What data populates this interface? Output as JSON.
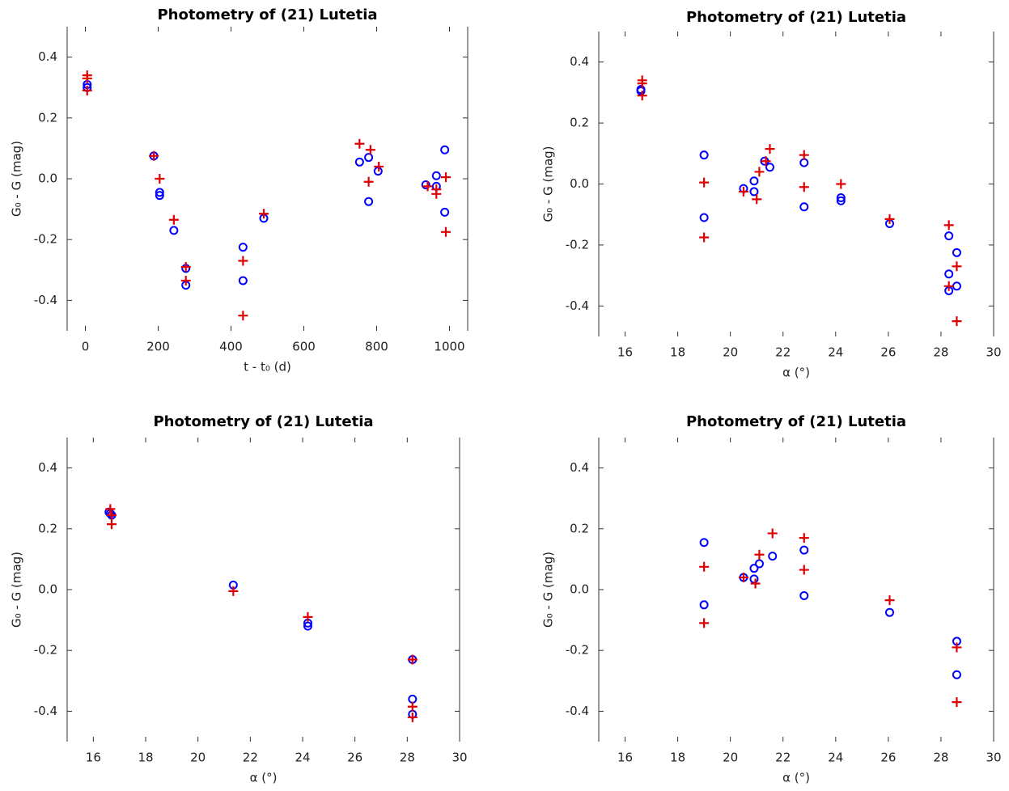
{
  "chart_data": [
    {
      "type": "scatter",
      "title": "Photometry of (21) Lutetia",
      "xlabel": "t - t₀ (d)",
      "ylabel": "G₀ - G (mag)",
      "xlim": [
        -50,
        1050
      ],
      "ylim": [
        -0.5,
        0.5
      ],
      "xticks": [
        0,
        200,
        400,
        600,
        800,
        1000
      ],
      "yticks": [
        0.4,
        0.2,
        {
          "value": 0,
          "label": "0.0"
        },
        -0.2,
        -0.4
      ],
      "series": [
        {
          "color": "#0000ff",
          "marker": "o",
          "x": [
            5,
            5,
            188,
            204,
            204,
            243,
            276,
            276,
            433,
            433,
            490,
            753,
            778,
            778,
            804,
            935,
            964,
            964,
            987,
            987
          ],
          "values": [
            0.31,
            0.3,
            0.075,
            -0.045,
            -0.055,
            -0.17,
            -0.295,
            -0.35,
            -0.225,
            -0.335,
            -0.13,
            0.055,
            0.07,
            -0.075,
            0.025,
            -0.02,
            0.01,
            -0.025,
            0.095,
            -0.11
          ]
        },
        {
          "color": "#e00000",
          "marker": "+",
          "x": [
            5,
            5,
            5,
            188,
            204,
            243,
            276,
            276,
            433,
            433,
            490,
            753,
            783,
            778,
            806,
            940,
            964,
            964,
            990,
            990
          ],
          "values": [
            0.34,
            0.33,
            0.29,
            0.075,
            0.0,
            -0.135,
            -0.29,
            -0.335,
            -0.27,
            -0.45,
            -0.115,
            0.115,
            0.095,
            -0.01,
            0.04,
            -0.025,
            -0.035,
            -0.05,
            0.005,
            -0.175
          ]
        }
      ]
    },
    {
      "type": "scatter",
      "title": "Photometry of (21) Lutetia",
      "xlabel": "α (°)",
      "ylabel": "G₀ - G (mag)",
      "xlim": [
        15,
        30
      ],
      "ylim": [
        -0.5,
        0.5
      ],
      "xticks": [
        16,
        18,
        20,
        22,
        24,
        26,
        28,
        30
      ],
      "yticks": [
        0.4,
        0.2,
        {
          "value": 0,
          "label": "0.0"
        },
        -0.2,
        -0.4
      ],
      "series": [
        {
          "color": "#0000ff",
          "marker": "o",
          "x": [
            16.6,
            16.6,
            19.0,
            19.0,
            20.5,
            20.9,
            20.9,
            21.3,
            21.5,
            22.8,
            22.8,
            24.2,
            24.2,
            26.05,
            28.3,
            28.3,
            28.3,
            28.6,
            28.6
          ],
          "values": [
            0.31,
            0.305,
            0.095,
            -0.11,
            -0.015,
            0.01,
            -0.025,
            0.075,
            0.055,
            0.07,
            -0.075,
            -0.045,
            -0.055,
            -0.13,
            -0.17,
            -0.295,
            -0.35,
            -0.225,
            -0.335
          ]
        },
        {
          "color": "#e00000",
          "marker": "+",
          "x": [
            16.65,
            16.65,
            16.65,
            19.0,
            19.0,
            20.5,
            21.0,
            21.1,
            21.35,
            21.5,
            22.8,
            22.8,
            24.2,
            26.05,
            28.3,
            28.3,
            28.6,
            28.6
          ],
          "values": [
            0.34,
            0.33,
            0.29,
            0.005,
            -0.175,
            -0.025,
            -0.05,
            0.04,
            0.075,
            0.115,
            0.095,
            -0.01,
            0.0,
            -0.115,
            -0.135,
            -0.335,
            -0.27,
            -0.45
          ]
        }
      ]
    },
    {
      "type": "scatter",
      "title": "Photometry of (21) Lutetia",
      "xlabel": "α (°)",
      "ylabel": "G₀ - G (mag)",
      "xlim": [
        15,
        30
      ],
      "ylim": [
        -0.5,
        0.5
      ],
      "xticks": [
        16,
        18,
        20,
        22,
        24,
        26,
        28,
        30
      ],
      "yticks": [
        0.4,
        0.2,
        {
          "value": 0,
          "label": "0.0"
        },
        -0.2,
        -0.4
      ],
      "series": [
        {
          "color": "#0000ff",
          "marker": "o",
          "x": [
            16.6,
            16.65,
            16.7,
            21.35,
            24.2,
            24.2,
            28.2,
            28.2,
            28.2
          ],
          "values": [
            0.255,
            0.25,
            0.245,
            0.015,
            -0.11,
            -0.12,
            -0.23,
            -0.36,
            -0.41
          ]
        },
        {
          "color": "#e00000",
          "marker": "+",
          "x": [
            16.65,
            16.7,
            16.7,
            21.35,
            24.2,
            28.2,
            28.2,
            28.2
          ],
          "values": [
            0.265,
            0.245,
            0.215,
            -0.005,
            -0.09,
            -0.23,
            -0.385,
            -0.42
          ]
        }
      ]
    },
    {
      "type": "scatter",
      "title": "Photometry of (21) Lutetia",
      "xlabel": "α (°)",
      "ylabel": "G₀ - G (mag)",
      "xlim": [
        15,
        30
      ],
      "ylim": [
        -0.5,
        0.5
      ],
      "xticks": [
        16,
        18,
        20,
        22,
        24,
        26,
        28,
        30
      ],
      "yticks": [
        0.4,
        0.2,
        {
          "value": 0,
          "label": "0.0"
        },
        -0.2,
        -0.4
      ],
      "series": [
        {
          "color": "#0000ff",
          "marker": "o",
          "x": [
            19.0,
            19.0,
            20.5,
            20.9,
            20.9,
            21.1,
            21.6,
            22.8,
            22.8,
            26.05,
            28.6,
            28.6
          ],
          "values": [
            0.155,
            -0.05,
            0.04,
            0.07,
            0.035,
            0.085,
            0.11,
            0.13,
            -0.02,
            -0.075,
            -0.17,
            -0.28
          ]
        },
        {
          "color": "#e00000",
          "marker": "+",
          "x": [
            19.0,
            19.0,
            20.5,
            20.95,
            21.1,
            21.6,
            22.8,
            22.8,
            26.05,
            28.6,
            28.6
          ],
          "values": [
            0.075,
            -0.11,
            0.04,
            0.02,
            0.115,
            0.185,
            0.17,
            0.065,
            -0.035,
            -0.19,
            -0.37
          ]
        }
      ]
    }
  ]
}
